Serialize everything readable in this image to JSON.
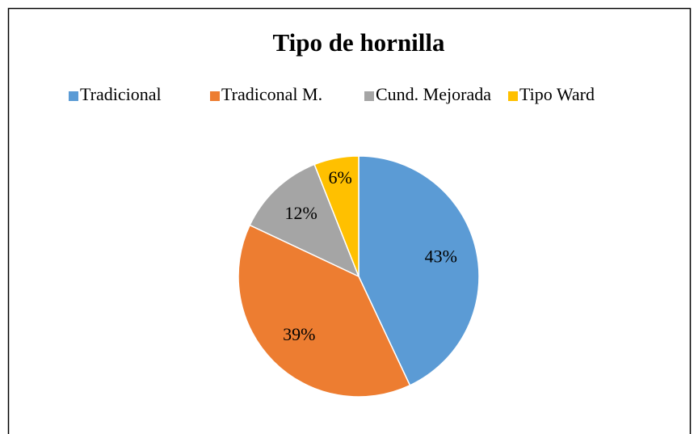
{
  "chart_data": {
    "type": "pie",
    "title": "Tipo de hornilla",
    "categories": [
      "Tradicional",
      "Tradiconal M.",
      "Cund. Mejorada",
      "Tipo Ward"
    ],
    "values": [
      43,
      39,
      12,
      6
    ],
    "value_labels": [
      "43%",
      "39%",
      "12%",
      "6%"
    ],
    "colors": [
      "#5b9bd5",
      "#ed7d31",
      "#a5a5a5",
      "#ffc000"
    ],
    "legend": "top"
  }
}
